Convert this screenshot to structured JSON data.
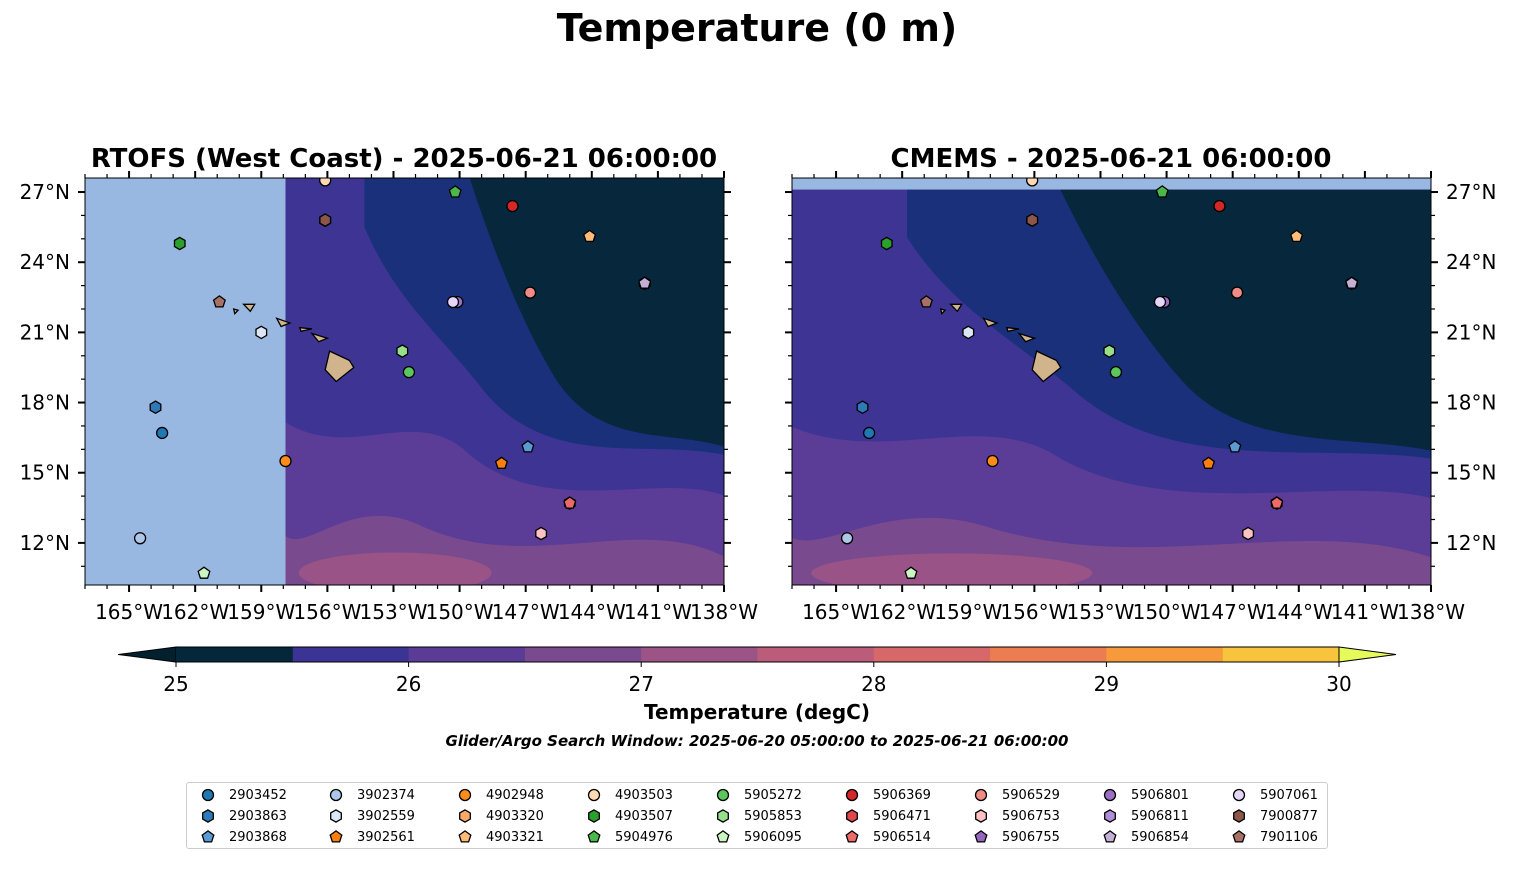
{
  "figure": {
    "title": "Temperature (0 m)"
  },
  "chart_data": [
    {
      "type": "heatmap",
      "title": "RTOFS (West Coast) - 2025-06-21 06:00:00",
      "xlabel": "",
      "ylabel": "",
      "xlim": [
        -167.0,
        -138.0
      ],
      "ylim": [
        10.2,
        27.6
      ],
      "x_ticks": [
        "165°W",
        "162°W",
        "159°W",
        "156°W",
        "153°W",
        "150°W",
        "147°W",
        "144°W",
        "141°W",
        "138°W"
      ],
      "y_ticks": [
        "12°N",
        "15°N",
        "18°N",
        "21°N",
        "24°N",
        "27°N"
      ],
      "data_coverage_lon": [
        -157.9,
        -138.0
      ]
    },
    {
      "type": "heatmap",
      "title": "CMEMS - 2025-06-21 06:00:00",
      "xlabel": "",
      "ylabel": "",
      "xlim": [
        -167.0,
        -138.0
      ],
      "ylim": [
        10.2,
        27.6
      ],
      "x_ticks": [
        "165°W",
        "162°W",
        "159°W",
        "156°W",
        "153°W",
        "150°W",
        "147°W",
        "144°W",
        "141°W",
        "138°W"
      ],
      "y_ticks": [
        "12°N",
        "15°N",
        "18°N",
        "21°N",
        "24°N",
        "27°N"
      ],
      "data_coverage_lat": [
        10.2,
        27.1
      ]
    }
  ],
  "colorbar": {
    "label": "Temperature (degC)",
    "ticks": [
      "25",
      "26",
      "27",
      "28",
      "29",
      "30"
    ],
    "min": 25,
    "max": 30,
    "step": 0.5,
    "under_color": "#03202e",
    "over_color": "#e6fa5a",
    "colors": [
      "#06263a",
      "#19307a",
      "#3c3494",
      "#5a3b96",
      "#7a4a8e",
      "#9c5486",
      "#bb5c7a",
      "#d6686a",
      "#ec7d52",
      "#f79a3c",
      "#f8c33d"
    ]
  },
  "search_window": "Glider/Argo Search Window: 2025-06-20 05:00:00 to 2025-06-21 06:00:00",
  "floats": [
    {
      "id": "2903452",
      "marker": "circle",
      "color": "#1f77b4",
      "lon": -163.5,
      "lat": 16.7
    },
    {
      "id": "2903863",
      "marker": "hexagon",
      "color": "#2f7ab6",
      "lon": -163.8,
      "lat": 17.8
    },
    {
      "id": "2903868",
      "marker": "pentagon",
      "color": "#5b9ad3",
      "lon": -146.9,
      "lat": 16.1
    },
    {
      "id": "3902374",
      "marker": "circle",
      "color": "#aec7e8",
      "lon": -164.5,
      "lat": 12.2
    },
    {
      "id": "3902559",
      "marker": "hexagon",
      "color": "#dbe7f5",
      "lon": -159.0,
      "lat": 21.0
    },
    {
      "id": "3902561",
      "marker": "pentagon",
      "color": "#ff7f0e",
      "lon": -148.1,
      "lat": 15.4
    },
    {
      "id": "4902948",
      "marker": "circle",
      "color": "#ff8c1a",
      "lon": -157.9,
      "lat": 15.5
    },
    {
      "id": "4903320",
      "marker": "hexagon",
      "color": "#ffaa66",
      "lon": -156.1,
      "lat": 25.8
    },
    {
      "id": "4903321",
      "marker": "pentagon",
      "color": "#ffbb78",
      "lon": -144.1,
      "lat": 25.1
    },
    {
      "id": "4903503",
      "marker": "circle",
      "color": "#ffd9b3",
      "lon": -156.1,
      "lat": 27.5
    },
    {
      "id": "4903507",
      "marker": "hexagon",
      "color": "#2ca02c",
      "lon": -162.7,
      "lat": 24.8
    },
    {
      "id": "5904976",
      "marker": "pentagon",
      "color": "#4bb84b",
      "lon": -150.2,
      "lat": 27.0
    },
    {
      "id": "5905272",
      "marker": "circle",
      "color": "#5cc75c",
      "lon": -152.3,
      "lat": 19.3
    },
    {
      "id": "5905853",
      "marker": "hexagon",
      "color": "#98df8a",
      "lon": -152.6,
      "lat": 20.2
    },
    {
      "id": "5906095",
      "marker": "pentagon",
      "color": "#ccf5c4",
      "lon": -161.6,
      "lat": 10.7
    },
    {
      "id": "5906369",
      "marker": "circle",
      "color": "#d62728",
      "lon": -147.6,
      "lat": 26.4
    },
    {
      "id": "5906471",
      "marker": "hexagon",
      "color": "#e0474c",
      "lon": -145.0,
      "lat": 13.7
    },
    {
      "id": "5906514",
      "marker": "pentagon",
      "color": "#ec6a6a",
      "lon": -145.0,
      "lat": 13.7
    },
    {
      "id": "5906529",
      "marker": "circle",
      "color": "#f08b86",
      "lon": -146.8,
      "lat": 22.7
    },
    {
      "id": "5906753",
      "marker": "hexagon",
      "color": "#ffc2c2",
      "lon": -146.3,
      "lat": 12.4
    },
    {
      "id": "5906755",
      "marker": "pentagon",
      "color": "#9467bd",
      "lon": -141.6,
      "lat": 23.1
    },
    {
      "id": "5906801",
      "marker": "circle",
      "color": "#9a6fc4",
      "lon": -150.1,
      "lat": 22.3
    },
    {
      "id": "5906811",
      "marker": "hexagon",
      "color": "#b08fd8",
      "lon": -141.6,
      "lat": 23.1
    },
    {
      "id": "5906854",
      "marker": "pentagon",
      "color": "#c5b0d5",
      "lon": -141.6,
      "lat": 23.1
    },
    {
      "id": "5907061",
      "marker": "circle",
      "color": "#e6d6f7",
      "lon": -150.3,
      "lat": 22.3
    },
    {
      "id": "7900877",
      "marker": "hexagon",
      "color": "#8c564b",
      "lon": -156.1,
      "lat": 25.8
    },
    {
      "id": "7901106",
      "marker": "pentagon",
      "color": "#a77166",
      "lon": -160.9,
      "lat": 22.3
    }
  ]
}
